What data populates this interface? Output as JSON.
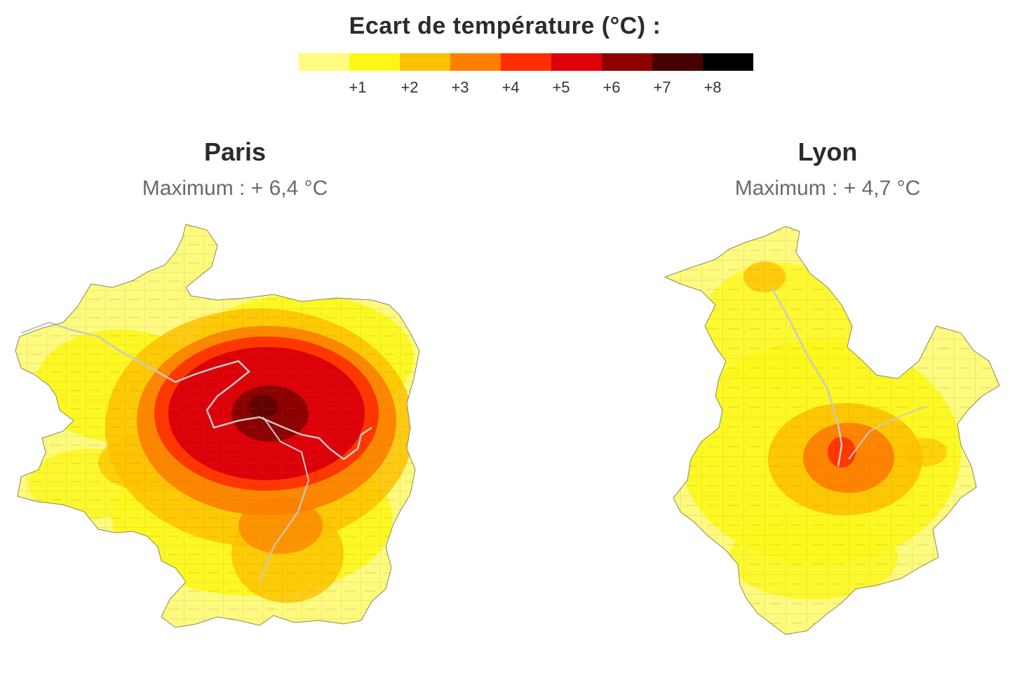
{
  "legend": {
    "title": "Ecart de température (°C) :",
    "swatches": [
      {
        "color": "#fffb80"
      },
      {
        "color": "#fdf719"
      },
      {
        "color": "#fec100"
      },
      {
        "color": "#fd7f00"
      },
      {
        "color": "#ff2e00"
      },
      {
        "color": "#dd0009"
      },
      {
        "color": "#8c0000"
      },
      {
        "color": "#470000"
      },
      {
        "color": "#000000"
      }
    ],
    "ticks": [
      "+1",
      "+2",
      "+3",
      "+4",
      "+5",
      "+6",
      "+7",
      "+8"
    ]
  },
  "maps": [
    {
      "city": "Paris",
      "maximum": "Maximum : + 6,4 °C"
    },
    {
      "city": "Lyon",
      "maximum": "Maximum : + 4,7 °C"
    }
  ]
}
